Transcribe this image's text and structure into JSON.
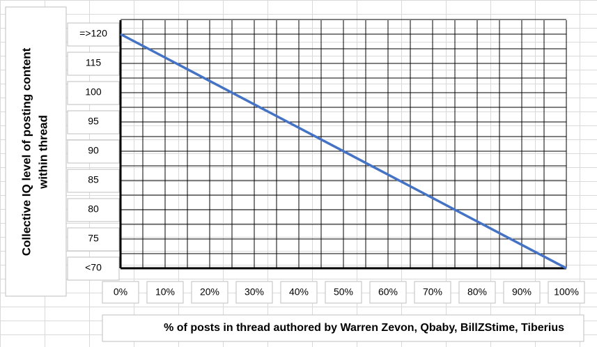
{
  "chart_data": {
    "type": "line",
    "ylabel": [
      "Collective IQ level of posting content",
      "within thread"
    ],
    "xlabel": "% of posts in thread authored by Warren Zevon, Qbaby, BillZStime, Tiberius",
    "y_categories": [
      "=>120",
      "115",
      "100",
      "95",
      "90",
      "85",
      "80",
      "75",
      "<70"
    ],
    "x": [
      0,
      100
    ],
    "series": [
      {
        "name": "IQ",
        "color": "#4472c4",
        "values": [
          120,
          70
        ]
      }
    ],
    "xlim": [
      0,
      100
    ],
    "ylim": [
      70,
      120
    ],
    "xticks": [
      {
        "value": 0,
        "label": "0%"
      },
      {
        "value": 10,
        "label": "10%"
      },
      {
        "value": 20,
        "label": "20%"
      },
      {
        "value": 30,
        "label": "30%"
      },
      {
        "value": 40,
        "label": "40%"
      },
      {
        "value": 50,
        "label": "50%"
      },
      {
        "value": 60,
        "label": "60%"
      },
      {
        "value": 70,
        "label": "70%"
      },
      {
        "value": 80,
        "label": "80%"
      },
      {
        "value": 90,
        "label": "90%"
      },
      {
        "value": 100,
        "label": "100%"
      }
    ],
    "grid": true
  }
}
